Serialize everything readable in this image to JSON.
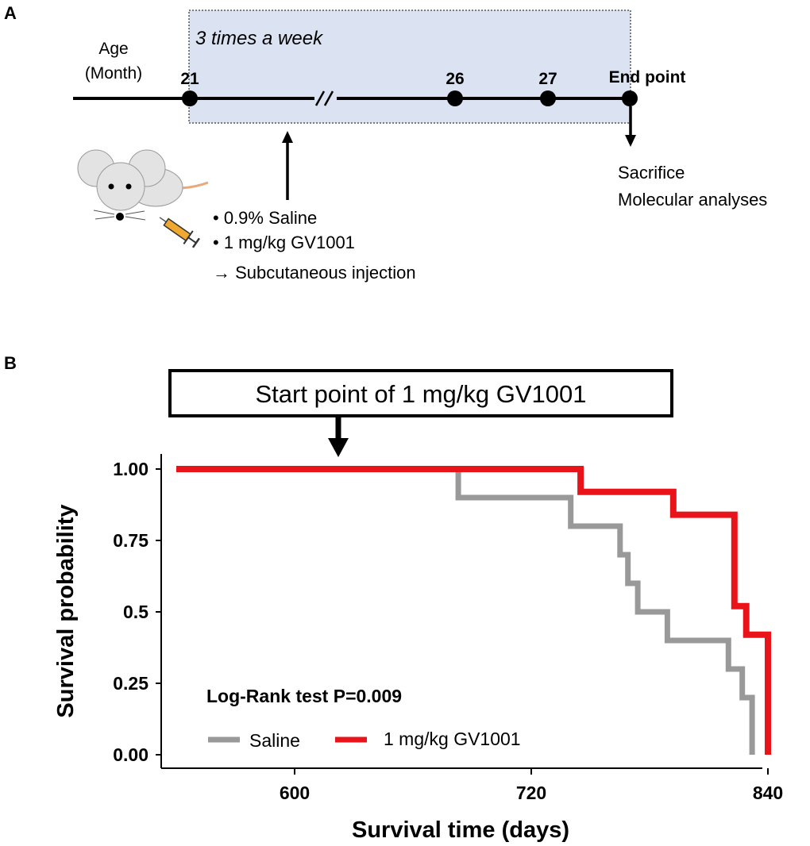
{
  "panel_a": {
    "label": "A",
    "age_label_line1": "Age",
    "age_label_line2": "(Month)",
    "frequency_label": "3 times a week",
    "timepoints": [
      "21",
      "26",
      "27",
      "End point"
    ],
    "treatments": [
      "• 0.9% Saline",
      "• 1 mg/kg GV1001",
      "→ Subcutaneous injection"
    ],
    "endpoint_actions": [
      "Sacrifice",
      "Molecular analyses"
    ],
    "colors": {
      "shade": "#dbe3f3",
      "shade_border": "#555555"
    },
    "icons": {
      "mouse": "mouse-illustration",
      "syringe": "syringe-illustration"
    }
  },
  "panel_b": {
    "label": "B",
    "callout": "Start point of 1 mg/kg GV1001"
  },
  "chart_data": {
    "type": "line",
    "step": true,
    "xlabel": "Survival time (days)",
    "ylabel": "Survival probability",
    "xlim": [
      540,
      885
    ],
    "ylim": [
      0,
      1
    ],
    "xticks": [
      "600",
      "720",
      "840"
    ],
    "yticks": [
      "0.00",
      "0.25",
      "0.5",
      "0.75",
      "1.00"
    ],
    "annotation": "Log-Rank test P=0.009",
    "marker_x": 635,
    "legend": "bottom-left",
    "series": [
      {
        "name": "Saline",
        "color": "#999999",
        "x": [
          540,
          683,
          683,
          740,
          740,
          765,
          765,
          769,
          769,
          774,
          774,
          789,
          789,
          820,
          820,
          827,
          827,
          832,
          832
        ],
        "y": [
          1.0,
          1.0,
          0.9,
          0.9,
          0.8,
          0.8,
          0.7,
          0.7,
          0.6,
          0.6,
          0.5,
          0.5,
          0.4,
          0.4,
          0.3,
          0.3,
          0.2,
          0.2,
          0.0
        ]
      },
      {
        "name": "1 mg/kg GV1001",
        "color": "#e8141a",
        "x": [
          540,
          745,
          745,
          792,
          792,
          823,
          823,
          829,
          829,
          840,
          840
        ],
        "y": [
          1.0,
          1.0,
          0.92,
          0.92,
          0.84,
          0.84,
          0.52,
          0.52,
          0.42,
          0.42,
          0.0
        ]
      }
    ]
  }
}
